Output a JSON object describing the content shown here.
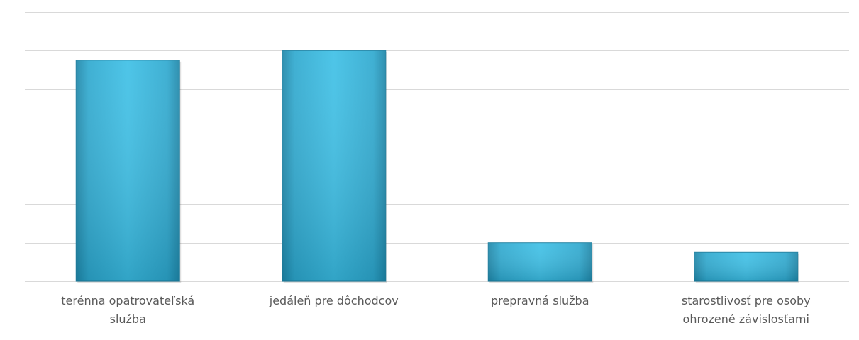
{
  "chart_data": {
    "type": "bar",
    "categories": [
      "terénna opatrovateľská služba",
      "jedáleň pre dôchodcov",
      "prepravná služba",
      "starostlivosť pre osoby ohrozené závislosťami"
    ],
    "values": [
      11.5,
      12,
      2,
      1.5
    ],
    "ylim": [
      0,
      14
    ],
    "gridlines": [
      0,
      2,
      4,
      6,
      8,
      10,
      12,
      14
    ],
    "grid": true,
    "bar_color": "#31b4d9",
    "bar_color_dark": "#1f7f9f",
    "grid_color": "#d9d9d9",
    "title": "",
    "xlabel": "",
    "ylabel": ""
  }
}
